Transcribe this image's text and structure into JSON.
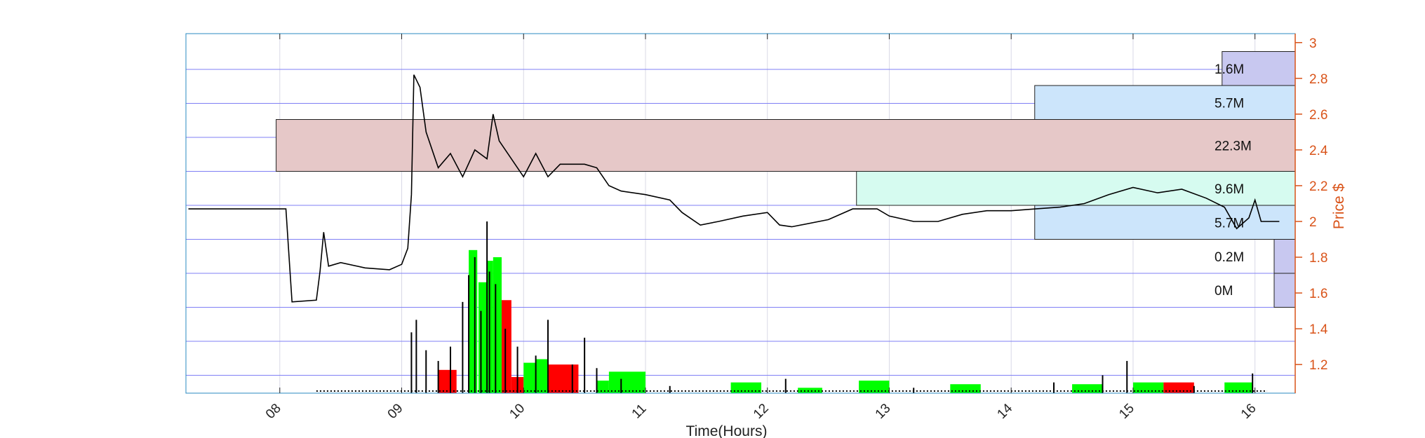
{
  "chart_data": {
    "type": "candlestick-volume-profile",
    "x_axis": {
      "label": "Time(Hours)",
      "ticks": [
        "08",
        "09",
        "10",
        "11",
        "12",
        "13",
        "14",
        "15",
        "16"
      ],
      "range": [
        7.23,
        16.33
      ]
    },
    "y_axis": {
      "label": "Price $",
      "side": "right",
      "ticks": [
        "1.2",
        "1.4",
        "1.6",
        "1.8",
        "2",
        "2.2",
        "2.4",
        "2.6",
        "2.8",
        "3"
      ],
      "range": [
        1.04,
        3.05
      ]
    },
    "grid": true,
    "colors": {
      "axis_right": "#d95319",
      "grid_blue": "#0000ff",
      "price_line": "#000000",
      "vol_up": "#00ff00",
      "vol_down": "#ff0000",
      "profile_purple": "#c8c8f0",
      "profile_blue": "#cce5fb",
      "profile_pink": "#e6c8c8",
      "profile_cyan": "#d6fbf0"
    },
    "volume_profile": [
      {
        "low": 2.76,
        "high": 2.95,
        "label": "1.6M",
        "value": 1.6,
        "color": "#c8c8f0"
      },
      {
        "low": 2.57,
        "high": 2.76,
        "label": "5.7M",
        "value": 5.7,
        "color": "#cce5fb"
      },
      {
        "low": 2.28,
        "high": 2.57,
        "label": "22.3M",
        "value": 22.3,
        "color": "#e6c8c8"
      },
      {
        "low": 2.09,
        "high": 2.28,
        "label": "9.6M",
        "value": 9.6,
        "color": "#d6fbf0"
      },
      {
        "low": 1.9,
        "high": 2.09,
        "label": "5.7M",
        "value": 5.7,
        "color": "#cce5fb"
      },
      {
        "low": 1.71,
        "high": 1.9,
        "label": "0.2M",
        "value": 0.2,
        "color": "#c8c8f0"
      },
      {
        "low": 1.52,
        "high": 1.71,
        "label": "0M",
        "value": 0.03,
        "color": "#c8c8f0"
      }
    ],
    "price_series": [
      [
        7.25,
        2.07
      ],
      [
        8.05,
        2.07
      ],
      [
        8.1,
        1.55
      ],
      [
        8.3,
        1.56
      ],
      [
        8.33,
        1.72
      ],
      [
        8.36,
        1.94
      ],
      [
        8.4,
        1.75
      ],
      [
        8.5,
        1.77
      ],
      [
        8.7,
        1.74
      ],
      [
        8.9,
        1.73
      ],
      [
        9.0,
        1.76
      ],
      [
        9.05,
        1.85
      ],
      [
        9.08,
        2.15
      ],
      [
        9.1,
        2.82
      ],
      [
        9.15,
        2.75
      ],
      [
        9.2,
        2.5
      ],
      [
        9.3,
        2.3
      ],
      [
        9.4,
        2.38
      ],
      [
        9.5,
        2.25
      ],
      [
        9.6,
        2.4
      ],
      [
        9.7,
        2.35
      ],
      [
        9.75,
        2.6
      ],
      [
        9.8,
        2.45
      ],
      [
        9.9,
        2.35
      ],
      [
        10.0,
        2.25
      ],
      [
        10.1,
        2.38
      ],
      [
        10.2,
        2.25
      ],
      [
        10.3,
        2.32
      ],
      [
        10.5,
        2.32
      ],
      [
        10.6,
        2.3
      ],
      [
        10.7,
        2.2
      ],
      [
        10.8,
        2.17
      ],
      [
        11.0,
        2.15
      ],
      [
        11.2,
        2.12
      ],
      [
        11.3,
        2.05
      ],
      [
        11.45,
        1.98
      ],
      [
        11.6,
        2.0
      ],
      [
        11.8,
        2.03
      ],
      [
        12.0,
        2.05
      ],
      [
        12.1,
        1.98
      ],
      [
        12.2,
        1.97
      ],
      [
        12.5,
        2.01
      ],
      [
        12.7,
        2.07
      ],
      [
        12.9,
        2.07
      ],
      [
        13.0,
        2.03
      ],
      [
        13.2,
        2.0
      ],
      [
        13.4,
        2.0
      ],
      [
        13.6,
        2.04
      ],
      [
        13.8,
        2.06
      ],
      [
        14.0,
        2.06
      ],
      [
        14.2,
        2.07
      ],
      [
        14.4,
        2.08
      ],
      [
        14.6,
        2.1
      ],
      [
        14.8,
        2.15
      ],
      [
        15.0,
        2.19
      ],
      [
        15.2,
        2.16
      ],
      [
        15.4,
        2.18
      ],
      [
        15.6,
        2.13
      ],
      [
        15.75,
        2.08
      ],
      [
        15.85,
        1.96
      ],
      [
        15.95,
        2.02
      ],
      [
        16.0,
        2.12
      ],
      [
        16.05,
        2.0
      ],
      [
        16.2,
        2.0
      ]
    ],
    "volume_bars": [
      {
        "t0": 9.3,
        "t1": 9.45,
        "price": 1.17,
        "dir": "down"
      },
      {
        "t0": 9.55,
        "t1": 9.62,
        "price": 1.84,
        "dir": "up"
      },
      {
        "t0": 9.63,
        "t1": 9.7,
        "price": 1.66,
        "dir": "up"
      },
      {
        "t0": 9.7,
        "t1": 9.75,
        "price": 1.78,
        "dir": "up"
      },
      {
        "t0": 9.75,
        "t1": 9.82,
        "price": 1.8,
        "dir": "up"
      },
      {
        "t0": 9.82,
        "t1": 9.9,
        "price": 1.56,
        "dir": "down"
      },
      {
        "t0": 9.9,
        "t1": 10.0,
        "price": 1.13,
        "dir": "down"
      },
      {
        "t0": 10.0,
        "t1": 10.1,
        "price": 1.21,
        "dir": "up"
      },
      {
        "t0": 10.1,
        "t1": 10.2,
        "price": 1.23,
        "dir": "up"
      },
      {
        "t0": 10.2,
        "t1": 10.45,
        "price": 1.2,
        "dir": "down"
      },
      {
        "t0": 10.6,
        "t1": 10.7,
        "price": 1.11,
        "dir": "up"
      },
      {
        "t0": 10.7,
        "t1": 11.0,
        "price": 1.16,
        "dir": "up"
      },
      {
        "t0": 11.7,
        "t1": 11.95,
        "price": 1.1,
        "dir": "up"
      },
      {
        "t0": 12.25,
        "t1": 12.45,
        "price": 1.07,
        "dir": "up"
      },
      {
        "t0": 12.75,
        "t1": 13.0,
        "price": 1.11,
        "dir": "up"
      },
      {
        "t0": 13.5,
        "t1": 13.75,
        "price": 1.09,
        "dir": "up"
      },
      {
        "t0": 14.5,
        "t1": 14.75,
        "price": 1.09,
        "dir": "up"
      },
      {
        "t0": 15.0,
        "t1": 15.25,
        "price": 1.1,
        "dir": "up"
      },
      {
        "t0": 15.25,
        "t1": 15.5,
        "price": 1.1,
        "dir": "down"
      },
      {
        "t0": 15.75,
        "t1": 15.98,
        "price": 1.1,
        "dir": "up"
      }
    ],
    "volume_spikes": [
      [
        9.08,
        1.38
      ],
      [
        9.12,
        1.45
      ],
      [
        9.2,
        1.28
      ],
      [
        9.3,
        1.22
      ],
      [
        9.4,
        1.3
      ],
      [
        9.5,
        1.55
      ],
      [
        9.55,
        1.7
      ],
      [
        9.6,
        1.8
      ],
      [
        9.65,
        1.5
      ],
      [
        9.7,
        2.0
      ],
      [
        9.72,
        1.72
      ],
      [
        9.77,
        1.65
      ],
      [
        9.85,
        1.4
      ],
      [
        9.95,
        1.3
      ],
      [
        10.1,
        1.25
      ],
      [
        10.2,
        1.45
      ],
      [
        10.4,
        1.2
      ],
      [
        10.5,
        1.35
      ],
      [
        10.6,
        1.18
      ],
      [
        10.8,
        1.12
      ],
      [
        11.2,
        1.08
      ],
      [
        12.15,
        1.12
      ],
      [
        13.2,
        1.07
      ],
      [
        14.35,
        1.1
      ],
      [
        14.75,
        1.14
      ],
      [
        14.95,
        1.22
      ],
      [
        15.5,
        1.08
      ],
      [
        15.98,
        1.15
      ]
    ]
  }
}
